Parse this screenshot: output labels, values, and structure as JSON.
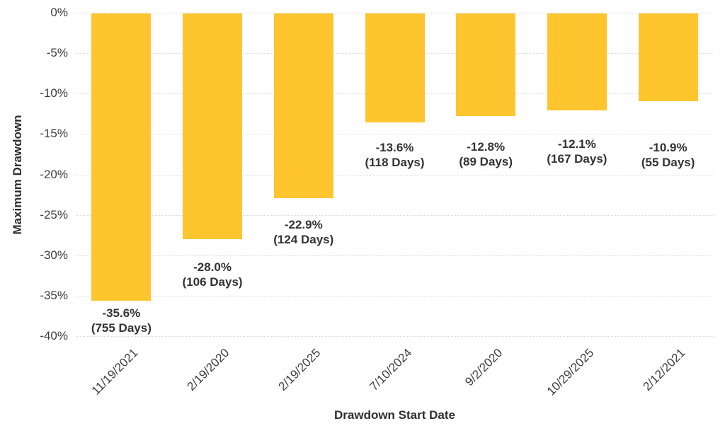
{
  "chart_data": {
    "type": "bar",
    "title": "",
    "xlabel": "Drawdown Start Date",
    "ylabel": "Maximum Drawdown",
    "categories": [
      "11/19/2021",
      "2/19/2020",
      "2/19/2025",
      "7/10/2024",
      "9/2/2020",
      "10/29/2025",
      "2/12/2021"
    ],
    "values": [
      -35.6,
      -28.0,
      -22.9,
      -13.6,
      -12.8,
      -12.1,
      -10.9
    ],
    "durations_days": [
      755,
      106,
      124,
      118,
      89,
      167,
      55
    ],
    "point_labels": [
      [
        "-35.6%",
        "(755 Days)"
      ],
      [
        "-28.0%",
        "(106 Days)"
      ],
      [
        "-22.9%",
        "(124 Days)"
      ],
      [
        "-13.6%",
        "(118 Days)"
      ],
      [
        "-12.8%",
        "(89 Days)"
      ],
      [
        "-12.1%",
        "(167 Days)"
      ],
      [
        "-10.9%",
        "(55 Days)"
      ]
    ],
    "yticks": [
      0,
      -5,
      -10,
      -15,
      -20,
      -25,
      -30,
      -35,
      -40
    ],
    "ytick_labels": [
      "0%",
      "-5%",
      "-10%",
      "-15%",
      "-20%",
      "-25%",
      "-30%",
      "-35%",
      "-40%"
    ],
    "ylim": [
      -40,
      0
    ],
    "grid": true,
    "legend": "none",
    "bar_color": "#FFC52E",
    "gridline_color": "#D9D9D9",
    "bar_label_color": "#333333",
    "tick_label_color": "#3D3D3D",
    "axis_title_color": "#2E2E2E"
  }
}
